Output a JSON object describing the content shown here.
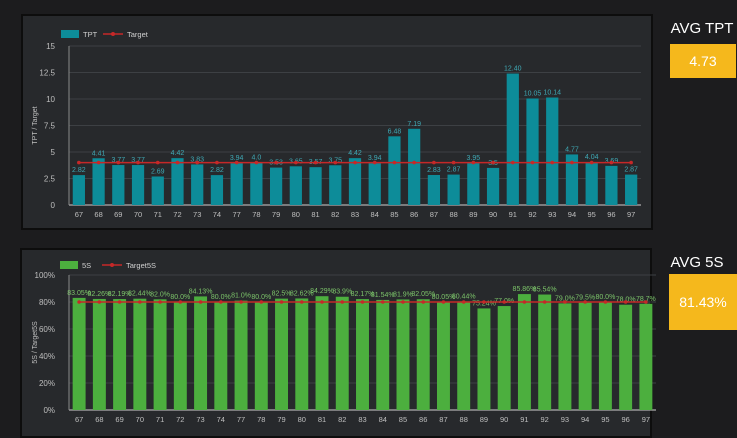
{
  "kpis": [
    {
      "title": "AVG TPT",
      "value": "4.73"
    },
    {
      "title": "AVG 5S",
      "value": "81.43%"
    }
  ],
  "chart_data": [
    {
      "type": "bar",
      "legend": [
        "TPT",
        "Target"
      ],
      "legend_position": "top-left",
      "ylabel": "TPT / Target",
      "ylim": [
        0,
        15
      ],
      "yticks": [
        "0",
        "2.5",
        "5",
        "7.5",
        "10",
        "12.5",
        "15"
      ],
      "grid": true,
      "categories": [
        "67",
        "68",
        "69",
        "70",
        "71",
        "72",
        "73",
        "74",
        "77",
        "78",
        "79",
        "80",
        "81",
        "82",
        "83",
        "84",
        "85",
        "86",
        "87",
        "88",
        "89",
        "90",
        "91",
        "92",
        "93",
        "94",
        "95",
        "96",
        "97"
      ],
      "series": [
        {
          "name": "TPT",
          "values": [
            2.82,
            4.41,
            3.77,
            3.77,
            2.69,
            4.42,
            3.83,
            2.82,
            3.94,
            4.0,
            3.53,
            3.65,
            3.57,
            3.75,
            4.42,
            3.94,
            6.48,
            7.19,
            2.83,
            2.87,
            3.95,
            3.5,
            12.4,
            10.05,
            10.14,
            4.77,
            4.04,
            3.69,
            2.87
          ],
          "labels": [
            "2.82",
            "4.41",
            "3.77",
            "3.77",
            "2.69",
            "4.42",
            "3.83",
            "2.82",
            "3.94",
            "4.0",
            "3.53",
            "3.65",
            "3.57",
            "3.75",
            "4.42",
            "3.94",
            "6.48",
            "7.19",
            "2.83",
            "2.87",
            "3.95",
            "3.5",
            "12.40",
            "10.05",
            "10.14",
            "4.77",
            "4.04",
            "3.69",
            "2.87"
          ],
          "color": "#0d8c99"
        },
        {
          "name": "Target",
          "values": [
            4,
            4,
            4,
            4,
            4,
            4,
            4,
            4,
            4,
            4,
            4,
            4,
            4,
            4,
            4,
            4,
            4,
            4,
            4,
            4,
            4,
            4,
            4,
            4,
            4,
            4,
            4,
            4,
            4
          ],
          "color": "#c62828"
        }
      ]
    },
    {
      "type": "bar",
      "legend": [
        "5S",
        "Target5S"
      ],
      "legend_position": "top-left",
      "ylabel": "5S / Target5S",
      "ylim": [
        0,
        100
      ],
      "yticks": [
        "0%",
        "20%",
        "40%",
        "60%",
        "80%",
        "100%"
      ],
      "grid": true,
      "categories": [
        "67",
        "68",
        "69",
        "70",
        "71",
        "72",
        "73",
        "74",
        "77",
        "78",
        "79",
        "80",
        "81",
        "82",
        "83",
        "84",
        "85",
        "86",
        "87",
        "88",
        "89",
        "90",
        "91",
        "92",
        "93",
        "94",
        "95",
        "96",
        "97"
      ],
      "series": [
        {
          "name": "5S",
          "values": [
            83.05,
            82.26,
            82.19,
            82.44,
            82.0,
            80.0,
            84.13,
            80.0,
            81.0,
            80.0,
            82.5,
            82.62,
            84.29,
            83.9,
            82.17,
            81.54,
            81.9,
            82.05,
            80.05,
            80.44,
            75.24,
            77.0,
            85.86,
            85.54,
            79.0,
            79.5,
            80.0,
            78.0,
            78.7
          ],
          "labels": [
            "83.05%",
            "82.26%",
            "82.19%",
            "82.44%",
            "82.0%",
            "80.0%",
            "84.13%",
            "80.0%",
            "81.0%",
            "80.0%",
            "82.5%",
            "82.62%",
            "84.29%",
            "83.9%",
            "82.17%",
            "81.54%",
            "81.9%",
            "82.05%",
            "80.05%",
            "80.44%",
            "75.24%",
            "77.0%",
            "85.86%",
            "85.54%",
            "79.0%",
            "79.5%",
            "80.0%",
            "78.0%",
            "78.7%"
          ],
          "color": "#4caf3e"
        },
        {
          "name": "Target5S",
          "values": [
            80,
            80,
            80,
            80,
            80,
            80,
            80,
            80,
            80,
            80,
            80,
            80,
            80,
            80,
            80,
            80,
            80,
            80,
            80,
            80,
            80,
            80,
            80,
            80,
            80,
            80,
            80,
            80,
            80
          ],
          "color": "#c62828"
        }
      ]
    }
  ]
}
